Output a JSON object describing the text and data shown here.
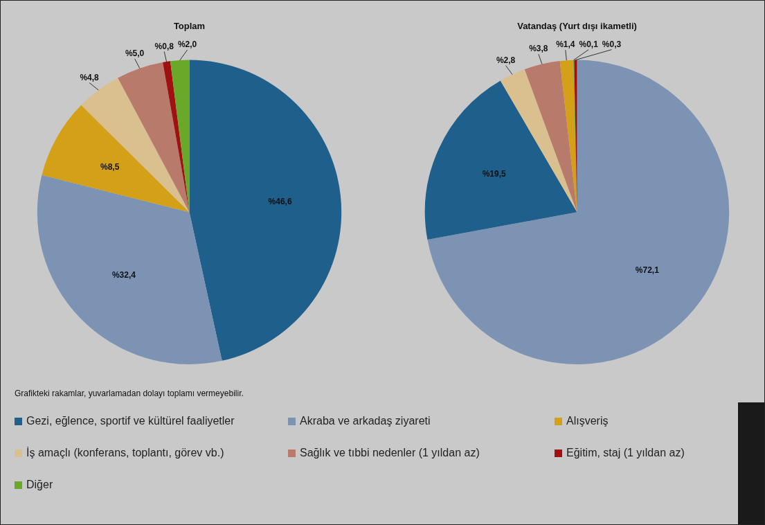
{
  "chart_data": [
    {
      "type": "pie",
      "title": "Toplam",
      "categories": [
        "Gezi, eğlence, sportif ve kültürel faaliyetler",
        "Akraba ve arkadaş ziyareti",
        "Alışveriş",
        "İş amaçlı (konferans, toplantı, görev vb.)",
        "Sağlık ve tıbbi nedenler (1 yıldan az)",
        "Eğitim, staj (1 yıldan az)",
        "Diğer"
      ],
      "values": [
        46.6,
        32.4,
        8.5,
        4.8,
        5.0,
        0.8,
        2.0
      ],
      "colors": [
        "#1e5f8c",
        "#7d93b3",
        "#d4a017",
        "#d9c08e",
        "#b87a6a",
        "#a01010",
        "#6aa82a"
      ],
      "value_labels": [
        "%46,6",
        "%32,4",
        "%8,5",
        "%4,8",
        "%5,0",
        "%0,8",
        "%2,0"
      ],
      "legend": "bottom",
      "annotations": [
        "Grafikteki rakamlar, yuvarlamadan dolayı toplamı vermeyebilir."
      ]
    },
    {
      "type": "pie",
      "title": "Vatandaş (Yurt dışı ikametli)",
      "categories": [
        null,
        null,
        null,
        null,
        null,
        null,
        null
      ],
      "values": [
        72.1,
        19.5,
        2.8,
        3.8,
        1.4,
        0.1,
        0.3
      ],
      "colors": [
        "#7d93b3",
        "#1e5f8c",
        "#d9c08e",
        "#b87a6a",
        "#d4a017",
        "#6aa82a",
        "#a01010"
      ],
      "value_labels": [
        "%72,1",
        "%19,5",
        "%2,8",
        "%3,8",
        "%1,4",
        "%0,1",
        "%0,3"
      ]
    }
  ]
}
